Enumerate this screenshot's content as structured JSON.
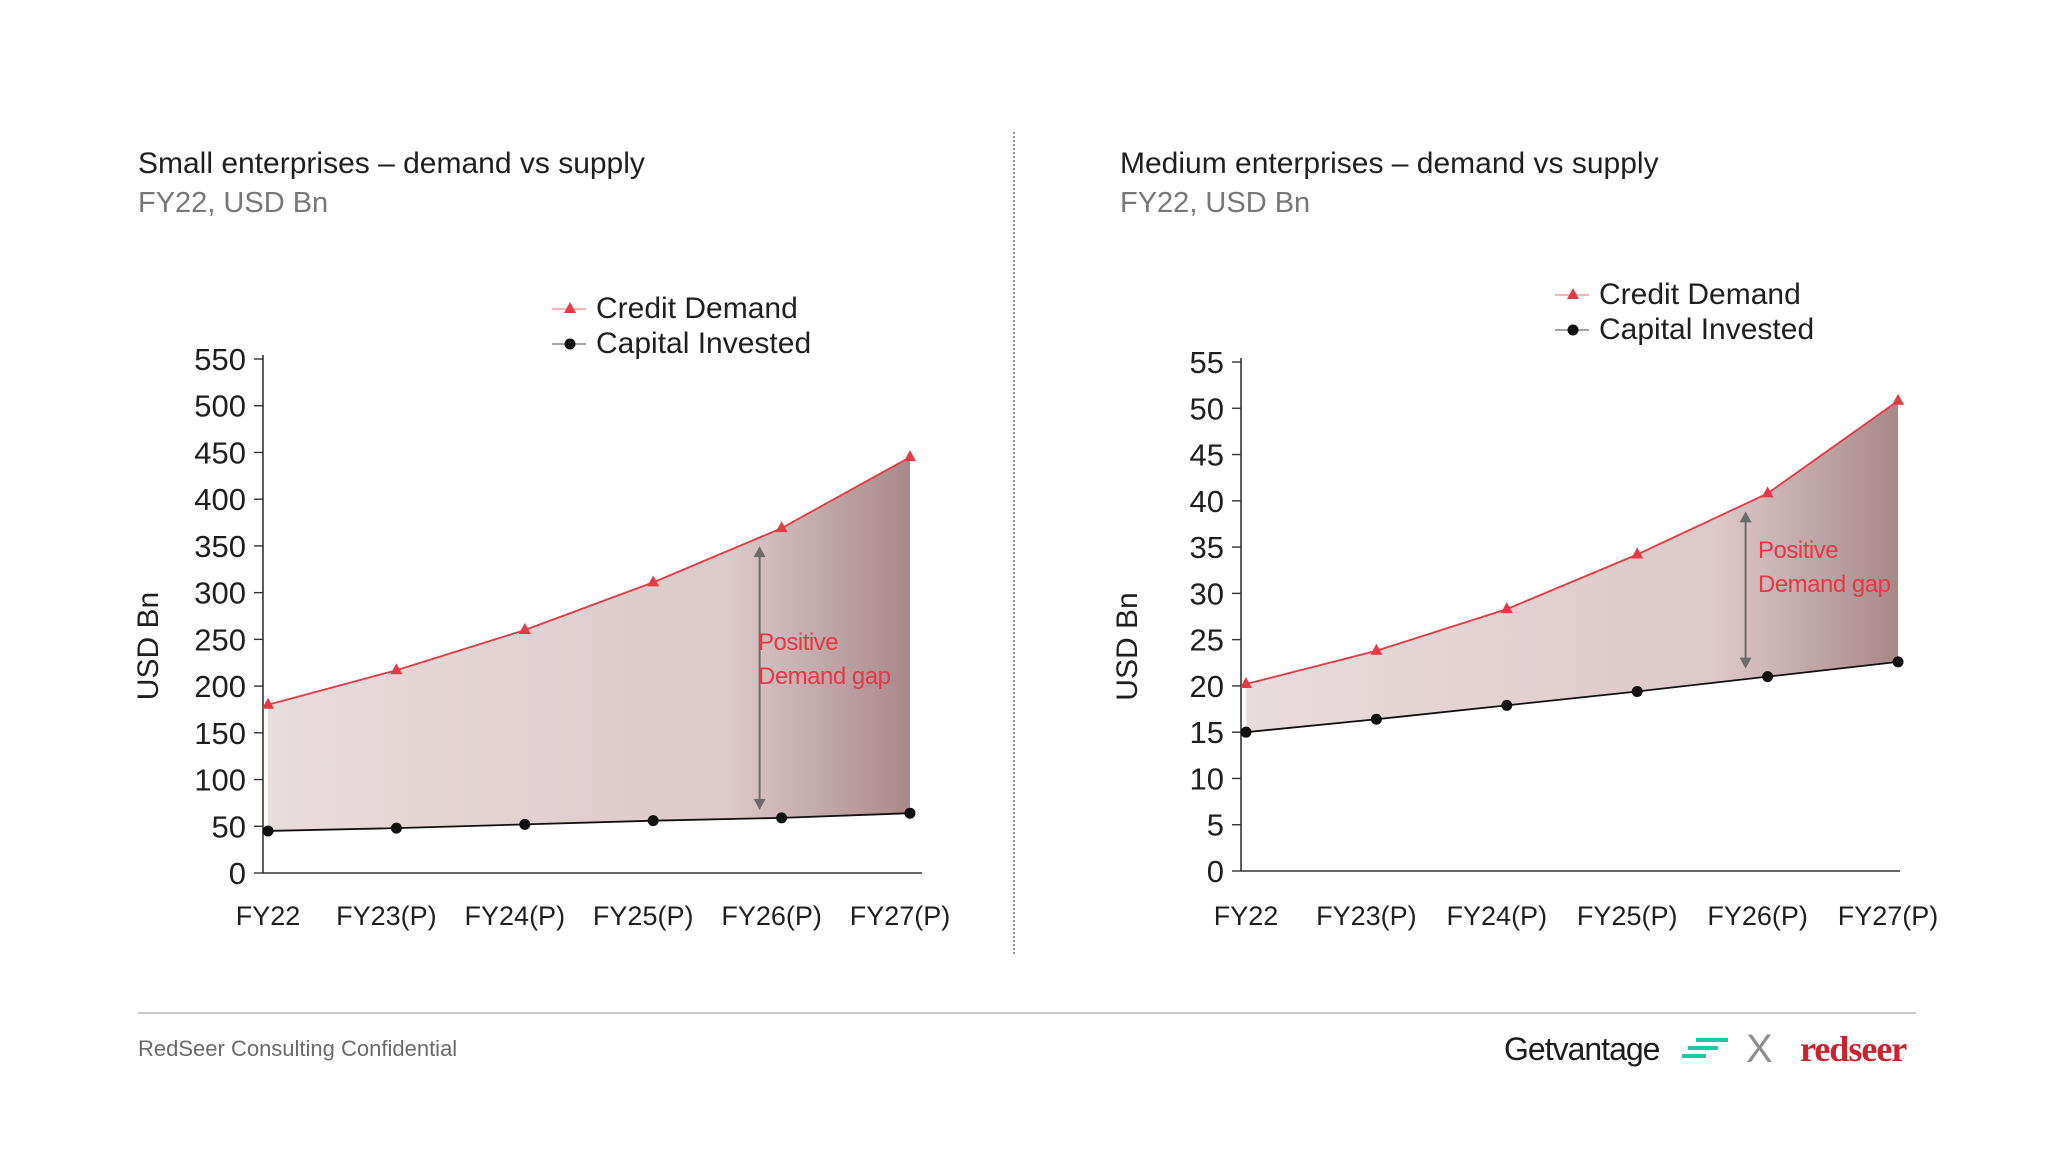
{
  "colors": {
    "demand": "#e53945",
    "invested": "#111111",
    "fill_light": "#e9dcdc",
    "fill_dark": "#a9888a",
    "gap_text": "#e53945",
    "arrow": "#6b6b6b"
  },
  "chart_data": [
    {
      "type": "area",
      "title": "Small enterprises – demand vs supply",
      "subtitle": "FY22, USD Bn",
      "ylabel": "USD Bn",
      "ylim": [
        0,
        550
      ],
      "yticks": [
        "0",
        "50",
        "100",
        "150",
        "200",
        "250",
        "300",
        "350",
        "400",
        "450",
        "500",
        "550"
      ],
      "ytick_values": [
        0,
        50,
        100,
        150,
        200,
        250,
        300,
        350,
        400,
        450,
        500,
        550
      ],
      "categories": [
        "FY22",
        "FY23(P)",
        "FY24(P)",
        "FY25(P)",
        "FY26(P)",
        "FY27(P)"
      ],
      "legend": "top-center",
      "series": [
        {
          "name": "Credit Demand",
          "marker": "triangle",
          "values": [
            180,
            217,
            260,
            311,
            369,
            445
          ]
        },
        {
          "name": "Capital Invested",
          "marker": "circle",
          "values": [
            45,
            48,
            52,
            56,
            59,
            64
          ]
        }
      ],
      "annotation": {
        "text1": "Positive",
        "text2": "Demand gap",
        "at_category": 4
      }
    },
    {
      "type": "area",
      "title": "Medium enterprises – demand vs supply",
      "subtitle": "FY22, USD Bn",
      "ylabel": "USD Bn",
      "ylim": [
        0,
        55
      ],
      "yticks": [
        "0",
        "5",
        "10",
        "15",
        "20",
        "25",
        "30",
        "35",
        "40",
        "45",
        "50",
        "55"
      ],
      "ytick_values": [
        0,
        5,
        10,
        15,
        20,
        25,
        30,
        35,
        40,
        45,
        50,
        55
      ],
      "categories": [
        "FY22",
        "FY23(P)",
        "FY24(P)",
        "FY25(P)",
        "FY26(P)",
        "FY27(P)"
      ],
      "legend": "top-center",
      "series": [
        {
          "name": "Credit Demand",
          "marker": "triangle",
          "values": [
            20.2,
            23.8,
            28.3,
            34.2,
            40.8,
            50.8
          ]
        },
        {
          "name": "Capital Invested",
          "marker": "circle",
          "values": [
            15.0,
            16.4,
            17.9,
            19.4,
            21.0,
            22.6
          ]
        }
      ],
      "annotation": {
        "text1": "Positive",
        "text2": "Demand gap",
        "at_category": 4
      }
    }
  ],
  "footer": {
    "confidential": "RedSeer Consulting Confidential",
    "brand_left": "Getvantage",
    "brand_sep": "X",
    "brand_right": "redseer"
  }
}
